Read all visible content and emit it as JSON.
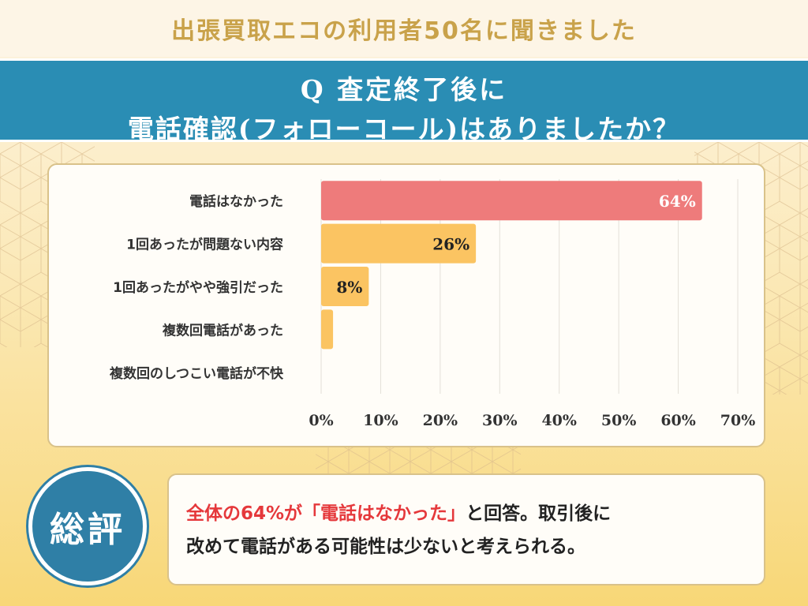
{
  "subtitle": "出張買取エコの利用者50名に聞きました",
  "question": {
    "line1": "Q 査定終了後に",
    "line2": "電話確認(フォローコール)はありましたか？"
  },
  "chart_data": {
    "type": "bar",
    "orientation": "horizontal",
    "categories": [
      "電話はなかった",
      "1回あったが問題ない内容",
      "1回あったがやや強引だった",
      "複数回電話があった",
      "複数回のしつこい電話が不快"
    ],
    "values": [
      64,
      26,
      8,
      2,
      0
    ],
    "value_labels": [
      "64%",
      "26%",
      "8%",
      "",
      ""
    ],
    "bar_colors": [
      "#ee7b7b",
      "#fbc462",
      "#fbc462",
      "#fbc462",
      "#fbc462"
    ],
    "xlim": [
      0,
      70
    ],
    "xticks": [
      0,
      10,
      20,
      30,
      40,
      50,
      60,
      70
    ],
    "xtick_labels": [
      "0%",
      "10%",
      "20%",
      "30%",
      "40%",
      "50%",
      "60%",
      "70%"
    ],
    "title": "",
    "xlabel": "",
    "ylabel": ""
  },
  "summary": {
    "badge": "総評",
    "highlight": "全体の64%が「電話はなかった」",
    "rest_line1": "と回答。取引後に",
    "line2": "改めて電話がある可能性は少ないと考えられる。"
  },
  "colors": {
    "banner": "#2a8db4",
    "subtitle": "#c9a24a",
    "highlight": "#e5383b",
    "pattern": "#d9b98a"
  }
}
